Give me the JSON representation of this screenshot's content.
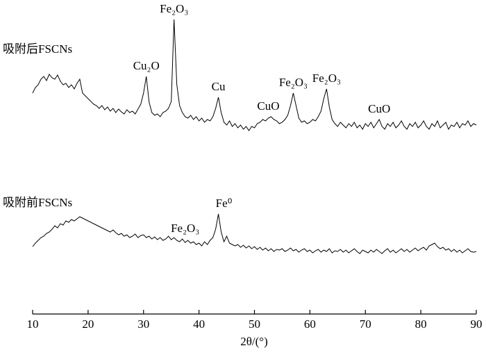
{
  "chart_data": {
    "type": "line",
    "xlabel": "2θ/(°)",
    "xlim": [
      10,
      90
    ],
    "xticks": [
      10,
      20,
      30,
      40,
      50,
      60,
      70,
      80,
      90
    ],
    "ylim": [
      0,
      440
    ],
    "x": [
      10,
      10.5,
      11,
      11.5,
      12,
      12.5,
      13,
      13.5,
      14,
      14.5,
      15,
      15.5,
      16,
      16.5,
      17,
      17.5,
      18,
      18.5,
      19,
      19.5,
      20,
      20.5,
      21,
      21.5,
      22,
      22.5,
      23,
      23.5,
      24,
      24.5,
      25,
      25.5,
      26,
      26.5,
      27,
      27.5,
      28,
      28.5,
      29,
      29.5,
      30,
      30.5,
      31,
      31.5,
      32,
      32.5,
      33,
      33.5,
      34,
      34.5,
      35,
      35.5,
      36,
      36.5,
      37,
      37.5,
      38,
      38.5,
      39,
      39.5,
      40,
      40.5,
      41,
      41.5,
      42,
      42.5,
      43,
      43.5,
      44,
      44.5,
      45,
      45.5,
      46,
      46.5,
      47,
      47.5,
      48,
      48.5,
      49,
      49.5,
      50,
      50.5,
      51,
      51.5,
      52,
      52.5,
      53,
      53.5,
      54,
      54.5,
      55,
      55.5,
      56,
      56.5,
      57,
      57.5,
      58,
      58.5,
      59,
      59.5,
      60,
      60.5,
      61,
      61.5,
      62,
      62.5,
      63,
      63.5,
      64,
      64.5,
      65,
      65.5,
      66,
      66.5,
      67,
      67.5,
      68,
      68.5,
      69,
      69.5,
      70,
      70.5,
      71,
      71.5,
      72,
      72.5,
      73,
      73.5,
      74,
      74.5,
      75,
      75.5,
      76,
      76.5,
      77,
      77.5,
      78,
      78.5,
      79,
      79.5,
      80,
      80.5,
      81,
      81.5,
      82,
      82.5,
      83,
      83.5,
      84,
      84.5,
      85,
      85.5,
      86,
      86.5,
      87,
      87.5,
      88,
      88.5,
      89,
      89.5,
      90
    ],
    "series": [
      {
        "name": "吸附后FSCNs",
        "color": "#000000",
        "values": [
          318,
          326,
          330,
          338,
          342,
          336,
          345,
          340,
          338,
          344,
          335,
          330,
          332,
          326,
          330,
          324,
          332,
          338,
          318,
          314,
          310,
          306,
          302,
          300,
          296,
          300,
          294,
          298,
          292,
          296,
          290,
          295,
          291,
          288,
          294,
          290,
          292,
          288,
          295,
          302,
          318,
          342,
          305,
          290,
          286,
          288,
          284,
          290,
          292,
          296,
          306,
          424,
          330,
          300,
          290,
          284,
          282,
          286,
          280,
          284,
          278,
          282,
          276,
          280,
          278,
          284,
          296,
          312,
          290,
          276,
          272,
          278,
          270,
          274,
          268,
          272,
          266,
          270,
          264,
          270,
          268,
          274,
          276,
          280,
          278,
          282,
          284,
          280,
          278,
          274,
          276,
          280,
          286,
          300,
          318,
          300,
          282,
          276,
          278,
          274,
          276,
          280,
          278,
          284,
          292,
          310,
          324,
          298,
          280,
          274,
          270,
          276,
          272,
          268,
          274,
          270,
          276,
          268,
          272,
          266,
          274,
          270,
          276,
          268,
          274,
          280,
          270,
          266,
          274,
          270,
          276,
          268,
          272,
          278,
          270,
          266,
          274,
          270,
          276,
          268,
          272,
          278,
          270,
          266,
          274,
          270,
          278,
          268,
          272,
          276,
          266,
          272,
          270,
          276,
          268,
          274,
          272,
          278,
          270,
          274,
          272
        ],
        "annotations": [
          {
            "text": "Cu₂O",
            "x": 30.5
          },
          {
            "text": "Fe₂O₃",
            "x": 35.5
          },
          {
            "text": "Cu",
            "x": 43.5
          },
          {
            "text": "CuO",
            "x": 52.5
          },
          {
            "text": "Fe₂O₃",
            "x": 57
          },
          {
            "text": "Fe₂O₃",
            "x": 63
          },
          {
            "text": "CuO",
            "x": 72.5
          }
        ]
      },
      {
        "name": "吸附前FSCNs",
        "color": "#000000",
        "values": [
          97,
          102,
          106,
          110,
          112,
          116,
          118,
          122,
          127,
          124,
          130,
          128,
          134,
          132,
          136,
          134,
          137,
          140,
          138,
          136,
          134,
          132,
          130,
          128,
          126,
          124,
          122,
          120,
          118,
          121,
          117,
          114,
          116,
          112,
          114,
          110,
          112,
          115,
          110,
          113,
          114,
          110,
          112,
          108,
          111,
          107,
          110,
          106,
          108,
          112,
          107,
          110,
          106,
          104,
          108,
          103,
          106,
          102,
          104,
          100,
          102,
          98,
          104,
          100,
          106,
          110,
          122,
          144,
          118,
          104,
          112,
          102,
          100,
          98,
          100,
          96,
          99,
          95,
          98,
          94,
          97,
          93,
          96,
          92,
          95,
          91,
          94,
          90,
          93,
          92,
          94,
          90,
          92,
          95,
          91,
          93,
          89,
          92,
          94,
          90,
          92,
          88,
          91,
          93,
          89,
          92,
          90,
          94,
          88,
          91,
          90,
          93,
          89,
          92,
          88,
          91,
          94,
          90,
          87,
          92,
          90,
          88,
          92,
          89,
          93,
          90,
          87,
          91,
          94,
          89,
          92,
          88,
          91,
          94,
          90,
          93,
          89,
          92,
          95,
          91,
          94,
          96,
          92,
          98,
          100,
          102,
          97,
          94,
          96,
          92,
          94,
          90,
          93,
          89,
          92,
          88,
          91,
          94,
          90,
          89,
          90
        ],
        "annotations": [
          {
            "text": "Fe₂O₃",
            "x": 37.5
          },
          {
            "text": "Fe⁰",
            "x": 44.5
          }
        ]
      }
    ]
  }
}
